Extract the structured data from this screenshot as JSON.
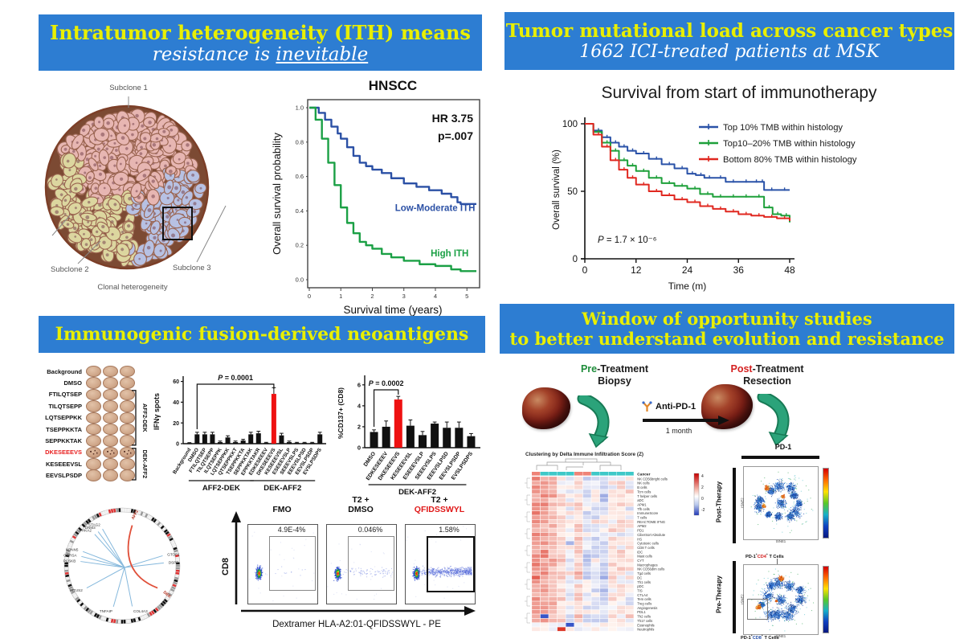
{
  "banners": {
    "ith": {
      "line1": "Intratumor heterogeneity (ITH) means",
      "line2_pre": "resistance is ",
      "line2_u": "inevitable"
    },
    "tmb": {
      "line1": "Tumor mutational load across cancer types",
      "line2": "1662 ICI-treated patients at MSK"
    },
    "neoantigen": {
      "line1": "Immunogenic fusion-derived neoantigens"
    },
    "window": {
      "line1": "Window of opportunity studies",
      "line2": "to better understand evolution and resistance"
    }
  },
  "subclone_diagram": {
    "label_s1": "Subclone 1",
    "label_s2": "Subclone 2",
    "label_s3": "Subclone 3",
    "caption": "Clonal heterogeneity",
    "colors": {
      "s1": "#e7b6b2",
      "s2": "#dcd69f",
      "s3": "#b7c1e3",
      "matrix": "#7c4a33",
      "stroke": "#9a6450"
    }
  },
  "chart_data": [
    {
      "id": "km_hnscc",
      "type": "line",
      "title": "HNSCC",
      "annotations": [
        "HR 3.75",
        "p=.007"
      ],
      "xlabel": "Survival time (years)",
      "ylabel": "Overall survival probability",
      "xlim": [
        0,
        5.3
      ],
      "ylim": [
        0,
        1.0
      ],
      "xticks": [
        0,
        1,
        2,
        3,
        4,
        5
      ],
      "yticks": [
        0.0,
        0.2,
        0.4,
        0.6,
        0.8,
        1.0
      ],
      "series": [
        {
          "name": "Low-Moderate ITH",
          "color": "#2b50a5",
          "x": [
            0,
            0.3,
            0.5,
            0.7,
            0.9,
            1.0,
            1.2,
            1.4,
            1.6,
            1.8,
            2.0,
            2.3,
            2.6,
            3.0,
            3.4,
            3.8,
            4.2,
            4.5,
            4.7,
            4.8,
            5.3
          ],
          "y": [
            1.0,
            0.97,
            0.93,
            0.89,
            0.85,
            0.82,
            0.77,
            0.72,
            0.68,
            0.66,
            0.64,
            0.62,
            0.59,
            0.56,
            0.54,
            0.52,
            0.5,
            0.48,
            0.45,
            0.44,
            0.44
          ],
          "label_x": 2.72,
          "label_y": 0.4
        },
        {
          "name": "High ITH",
          "color": "#1ba045",
          "x": [
            0,
            0.2,
            0.4,
            0.6,
            0.8,
            1.0,
            1.2,
            1.4,
            1.6,
            1.8,
            2.0,
            2.3,
            2.6,
            3.0,
            3.5,
            4.0,
            4.5,
            4.8,
            5.3
          ],
          "y": [
            1.0,
            0.93,
            0.82,
            0.68,
            0.55,
            0.42,
            0.33,
            0.27,
            0.22,
            0.2,
            0.18,
            0.15,
            0.13,
            0.11,
            0.09,
            0.08,
            0.06,
            0.05,
            0.05
          ],
          "label_x": 3.85,
          "label_y": 0.135
        }
      ]
    },
    {
      "id": "km_msk",
      "type": "line",
      "title": "Survival from start of immunotherapy",
      "xlabel": "Time (m)",
      "ylabel": "Overall survival (%)",
      "xlim": [
        0,
        48
      ],
      "ylim": [
        0,
        105
      ],
      "xticks": [
        0,
        12,
        24,
        36,
        48
      ],
      "yticks": [
        0,
        50,
        100
      ],
      "p_italic": "P",
      "p_rest": " = 1.7 × 10⁻⁶",
      "legend_position": "top-right",
      "series": [
        {
          "name": "Top 10% TMB within histology",
          "color": "#2a52a8",
          "x": [
            0,
            2,
            4,
            6,
            8,
            10,
            12,
            15,
            18,
            21,
            24,
            26,
            28,
            30,
            33,
            36,
            39,
            41,
            42,
            45,
            48
          ],
          "y": [
            100,
            95,
            90,
            86,
            83,
            80,
            78,
            74,
            70,
            67,
            63,
            62,
            60,
            60,
            57,
            57,
            57,
            57,
            51,
            51,
            51
          ]
        },
        {
          "name": "Top10–20% TMB within histology",
          "color": "#1ea03a",
          "x": [
            0,
            2,
            4,
            6,
            8,
            10,
            12,
            15,
            18,
            21,
            24,
            27,
            30,
            33,
            36,
            39,
            42,
            44,
            46,
            48
          ],
          "y": [
            100,
            94,
            86,
            80,
            73,
            69,
            65,
            60,
            56,
            54,
            52,
            48,
            46,
            46,
            46,
            46,
            38,
            33,
            32,
            27
          ]
        },
        {
          "name": "Bottom 80% TMB within histology",
          "color": "#e02820",
          "x": [
            0,
            2,
            4,
            6,
            8,
            10,
            12,
            15,
            18,
            21,
            24,
            27,
            30,
            33,
            36,
            39,
            42,
            45,
            48
          ],
          "y": [
            100,
            92,
            83,
            73,
            66,
            60,
            55,
            50,
            47,
            44,
            42,
            39,
            37,
            35,
            33,
            32,
            31,
            30,
            28
          ]
        }
      ]
    },
    {
      "id": "ifn_bar",
      "type": "bar",
      "ylabel": "IFNγ spots",
      "yticks": [
        0,
        20,
        40,
        60
      ],
      "ymax": 62,
      "p_italic": "P",
      "p_rest": " = 0.0001",
      "p_from": 1,
      "p_to": 11,
      "highlight_index": 11,
      "highlight_color": "#ee1111",
      "bar_color": "#111111",
      "categories": [
        "Background",
        "DMSO",
        "FTILQTSEP",
        "TILQTSEPP",
        "ILQTSEPPK",
        "LQTSEPPKK",
        "QTSEPPKKT",
        "TSEPPKKTA",
        "SEPPKKTAK",
        "EPPKKTAKR",
        "EDKESEEEV",
        "DKESEEEVS",
        "KESEEEVSL",
        "ESEEEVSLP",
        "SEEEVSLPS",
        "EEEVSLPSD",
        "EEVSLPSDP",
        "EVSLPSDPS"
      ],
      "values": [
        0.6,
        9,
        9,
        9,
        1.5,
        6,
        1.5,
        3,
        9,
        10,
        0.8,
        48,
        8,
        1.5,
        0.8,
        0.8,
        0.8,
        9
      ],
      "errors": [
        0.4,
        2,
        2,
        2,
        1,
        1.6,
        1,
        1.2,
        2,
        2,
        0.5,
        6,
        2,
        1,
        0.5,
        0.5,
        0.5,
        2
      ],
      "groups": [
        {
          "label": "AFF2-DEK",
          "from": 2,
          "to": 9
        },
        {
          "label": "DEK-AFF2",
          "from": 10,
          "to": 17
        }
      ]
    },
    {
      "id": "cd137_bar",
      "type": "bar",
      "ylabel": "%CD137+ (CD8)",
      "yticks": [
        0,
        2,
        4,
        6
      ],
      "ymax": 6.6,
      "p_italic": "P",
      "p_rest": " = 0.0002",
      "p_from": 0,
      "p_to": 2,
      "highlight_index": 2,
      "highlight_color": "#ee1111",
      "bar_color": "#111111",
      "categories": [
        "DMSO",
        "EDKESEEEV",
        "DKESEEEVS",
        "KESEEEVSL",
        "ESEEEVSLP",
        "SEEEVSLPS",
        "EEEVSLPSD",
        "EEVSLPSDP",
        "EVSLPSDPS"
      ],
      "values": [
        1.5,
        2.0,
        4.6,
        2.1,
        1.2,
        2.3,
        1.9,
        1.9,
        1.1
      ],
      "errors": [
        0.2,
        0.55,
        0.3,
        0.55,
        0.35,
        0.15,
        0.55,
        0.55,
        0.25
      ],
      "groups": [
        {
          "label": "DEK-AFF2",
          "from": 1,
          "to": 8
        }
      ]
    }
  ],
  "elispot": {
    "rows": [
      {
        "label": "Background",
        "red": false,
        "spotted": false
      },
      {
        "label": "DMSO",
        "red": false,
        "spotted": false
      },
      {
        "label": "FTILQTSEP",
        "red": false,
        "spotted": false
      },
      {
        "label": "TILQTSEPP",
        "red": false,
        "spotted": false
      },
      {
        "label": "LQTSEPPKK",
        "red": false,
        "spotted": false
      },
      {
        "label": "TSEPPKKTA",
        "red": false,
        "spotted": false
      },
      {
        "label": "SEPPKKTAK",
        "red": false,
        "spotted": false
      },
      {
        "label": "DKESEEEVS",
        "red": true,
        "spotted": true
      },
      {
        "label": "KESEEEVSL",
        "red": false,
        "spotted": false
      },
      {
        "label": "EEVSLPSDP",
        "red": false,
        "spotted": false
      }
    ],
    "wells_per_row": 3,
    "brackets": [
      {
        "label": "AFF2-DEK",
        "from": 2,
        "to": 6
      },
      {
        "label": "DEK-AFF2",
        "from": 7,
        "to": 9
      }
    ]
  },
  "circos": {
    "fusion_a": "AFF2",
    "fusion_b": "DEK",
    "fusion_color": "#e0503a",
    "partner_color": "#85b8dc",
    "partners": [
      {
        "name": "STAG2",
        "angle": 118
      },
      {
        "name": "DNM3",
        "angle": 125
      },
      {
        "name": "PHKA2",
        "angle": 131
      },
      {
        "name": "NPNN5",
        "angle": 160
      },
      {
        "name": "CORSA",
        "angle": 167
      },
      {
        "name": "PCSKB",
        "angle": 174
      },
      {
        "name": "MTUS2",
        "angle": 212
      },
      {
        "name": "TNFAIP",
        "angle": 258
      },
      {
        "name": "COL4A3",
        "angle": 284
      },
      {
        "name": "GTOP1",
        "angle": 14
      },
      {
        "name": "DSPP",
        "angle": 4
      }
    ],
    "angle_a": 76,
    "angle_b": -32
  },
  "flow": {
    "panels": [
      {
        "title1": "FMO",
        "title2": "",
        "pct": "4.9E-4%",
        "red_title": false,
        "bold_gate": false,
        "tail": 0
      },
      {
        "title1": "T2 +",
        "title2": "DMSO",
        "pct": "0.046%",
        "red_title": false,
        "bold_gate": false,
        "tail": 1
      },
      {
        "title1": "T2 +",
        "title2": "QFIDSSWYL",
        "pct": "1.58%",
        "red_title": true,
        "bold_gate": true,
        "tail": 2
      }
    ],
    "ylabel": "CD8",
    "xlabel": "Dextramer HLA-A2:01-QFIDSSWYL - PE"
  },
  "workflow": {
    "pre_hl": "Pre",
    "pre_rest": "-Treatment",
    "pre_line2": "Biopsy",
    "pre_color": "#1e8c3a",
    "post_hl": "Post",
    "post_rest": "-Treatment",
    "post_line2": "Resection",
    "post_color": "#d42020",
    "drug": "Anti-PD-1",
    "duration": "1 month"
  },
  "heatmap": {
    "title": "Clustering by Delta Immune Infiltration Score (Z)",
    "header_row": "Cancer",
    "rows": [
      "NK CD56bright cells",
      "NK cells",
      "B cells",
      "Tcm cells",
      "T helper cells",
      "aDC",
      "APM1",
      "Tfh cells",
      "ImmuneScore",
      "T cells",
      "REACTOME IFNG",
      "APM2",
      "PD1",
      "CiberSort Absolute",
      "HS",
      "Cytotoxic cells",
      "CD8 T cells",
      "iDC",
      "Mast cells",
      "CYT",
      "Macrophages",
      "NK CD56dim cells",
      "Tgd cells",
      "DC",
      "Th1 cells",
      "pDC",
      "TIS",
      "CTLA4",
      "Tem cells",
      "Treg cells",
      "Angiogenesis",
      "PDL1",
      "Th2 cells",
      "Th17 cells",
      "Eosinophils",
      "Neutrophils"
    ],
    "cols": 12,
    "annotation_colors": [
      "#ef8377",
      "#3fc8c8",
      "#3fc8c8",
      "#3fc8c8",
      "#3fc8c8",
      "#ef8377",
      "#ef8377",
      "#3fc8c8",
      "#3fc8c8",
      "#3fc8c8",
      "#3fc8c8",
      "#3fc8c8"
    ],
    "colorbar_ticks": [
      "4",
      "2",
      "0",
      "-2"
    ]
  },
  "tsne": {
    "header": "PD-1",
    "post_label": "Post-Therapy",
    "pre_label": "Pre-Therapy",
    "xlabel": "tSNE1",
    "ylabel": "tSNE2",
    "cd4_parts": [
      "PD-1",
      "+",
      "CD4",
      "+",
      " T Cells"
    ],
    "cd4_gene_color": "#d42020",
    "cd8_parts": [
      "PD-1",
      "+",
      "CD8",
      "+",
      " T Cells"
    ],
    "cd8_gene_color": "#2a52a8"
  }
}
